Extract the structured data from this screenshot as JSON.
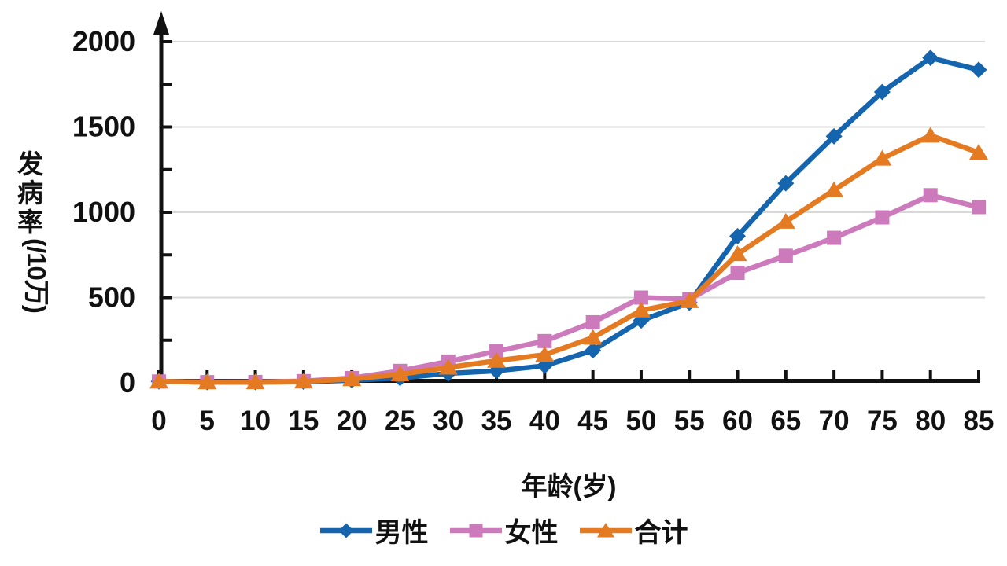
{
  "chart_data": {
    "type": "line",
    "title": "",
    "xlabel": "年龄(岁)",
    "ylabel_upright": "发病率",
    "ylabel_unit": "(/10万)",
    "x": [
      0,
      5,
      10,
      15,
      20,
      25,
      30,
      35,
      40,
      45,
      50,
      55,
      60,
      65,
      70,
      75,
      80,
      85
    ],
    "xtick_labels": [
      "0",
      "5",
      "10",
      "15",
      "20",
      "25",
      "30",
      "35",
      "40",
      "45",
      "50",
      "55",
      "60",
      "65",
      "70",
      "75",
      "80",
      "85"
    ],
    "ylim": [
      0,
      2000
    ],
    "yticks": [
      0,
      500,
      1000,
      1500,
      2000
    ],
    "ytick_labels": [
      "0",
      "500",
      "1000",
      "1500",
      "2000"
    ],
    "y_minor_tick_step": 250,
    "grid": "horizontal",
    "legend_position": "bottom",
    "y_axis_arrow": true,
    "series": [
      {
        "name": "男性",
        "marker": "diamond",
        "color": "#1565AE",
        "values": [
          8,
          4,
          4,
          6,
          15,
          28,
          55,
          70,
          100,
          190,
          365,
          470,
          860,
          1170,
          1445,
          1705,
          1905,
          1835
        ]
      },
      {
        "name": "女性",
        "marker": "square",
        "color": "#CC7ABC",
        "values": [
          8,
          4,
          5,
          10,
          28,
          70,
          125,
          185,
          245,
          355,
          500,
          490,
          645,
          745,
          850,
          970,
          1100,
          1030
        ]
      },
      {
        "name": "合计",
        "marker": "triangle",
        "color": "#E47B22",
        "values": [
          8,
          4,
          4,
          8,
          22,
          50,
          90,
          130,
          165,
          265,
          425,
          480,
          755,
          945,
          1130,
          1315,
          1450,
          1350
        ]
      }
    ],
    "colors": {
      "grid": "#D8D8D8",
      "axis": "#111111",
      "text": "#111111"
    }
  }
}
